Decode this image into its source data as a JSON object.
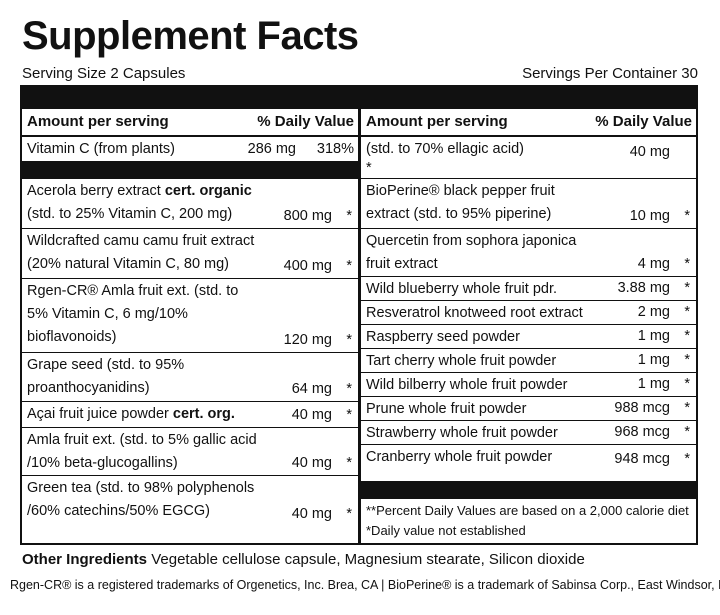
{
  "title": "Supplement Facts",
  "serving_size": "Serving Size 2 Capsules",
  "servings_per_container": "Servings Per Container 30",
  "header": {
    "amount_label": "Amount per serving",
    "dv_label": "% Daily Value"
  },
  "left": {
    "vitamin_c": {
      "name": "Vitamin C (from plants)",
      "amount": "286 mg",
      "dv": "318%"
    },
    "items": [
      {
        "name_plain": "Acerola berry extract ",
        "name_bold": "cert. organic",
        "name_rest": "(std. to 25% Vitamin C, 200 mg)",
        "amount": "800 mg",
        "dv": "*"
      },
      {
        "name_plain": "Wildcrafted camu camu fruit extract (20% natural Vitamin C, 80 mg)",
        "name_bold": "",
        "name_rest": "",
        "amount": "400 mg",
        "dv": "*"
      },
      {
        "name_plain": "Rgen-CR® Amla fruit ext. (std. to 5% Vitamin C, 6 mg/10% bioflavonoids)",
        "name_bold": "",
        "name_rest": "",
        "amount": "120 mg",
        "dv": "*"
      },
      {
        "name_plain": "Grape seed (std. to 95% proanthocyanidins)",
        "name_bold": "",
        "name_rest": "",
        "amount": "64 mg",
        "dv": "*"
      },
      {
        "name_plain": "Açai fruit juice powder ",
        "name_bold": "cert. org.",
        "name_rest": "",
        "amount": "40 mg",
        "dv": "*"
      },
      {
        "name_plain": "Amla fruit ext. (std. to 5% gallic acid /10% beta-glucogallins)",
        "name_bold": "",
        "name_rest": "",
        "amount": "40 mg",
        "dv": "*"
      },
      {
        "name_plain": "Green tea (std. to 98% polyphenols /60% catechins/50% EGCG)",
        "name_bold": "",
        "name_rest": "",
        "amount": "40 mg",
        "dv": "*"
      }
    ]
  },
  "right": {
    "items": [
      {
        "name": "(std. to 70% ellagic acid)",
        "amount": "40 mg",
        "dv": "*"
      },
      {
        "name": "BioPerine® black pepper fruit extract (std. to 95% piperine)",
        "amount": "10 mg",
        "dv": "*"
      },
      {
        "name": "Quercetin from sophora japonica fruit extract",
        "amount": "4 mg",
        "dv": "*"
      },
      {
        "name": "Wild blueberry whole fruit pdr.",
        "amount": "3.88 mg",
        "dv": "*"
      },
      {
        "name": "Resveratrol knotweed root extract",
        "amount": "2 mg",
        "dv": "*"
      },
      {
        "name": "Raspberry seed powder",
        "amount": "1 mg",
        "dv": "*"
      },
      {
        "name": "Tart cherry whole fruit powder",
        "amount": "1 mg",
        "dv": "*"
      },
      {
        "name": "Wild bilberry whole fruit powder",
        "amount": "1 mg",
        "dv": "*"
      },
      {
        "name": "Prune whole fruit powder",
        "amount": "988 mcg",
        "dv": "*"
      },
      {
        "name": "Strawberry whole fruit powder",
        "amount": "968 mcg",
        "dv": "*"
      },
      {
        "name": "Cranberry whole fruit powder",
        "amount": "948 mcg",
        "dv": "*"
      }
    ],
    "notes": [
      "**Percent Daily Values are based on a 2,000 calorie diet",
      "*Daily value not established"
    ]
  },
  "other_ingredients": {
    "label": "Other Ingredients",
    "text": "Vegetable cellulose capsule, Magnesium stearate, Silicon dioxide"
  },
  "trademark": "Rgen-CR® is a registered trademarks of Orgenetics, Inc. Brea, CA | BioPerine® is a trademark of Sabinsa Corp., East Windsor, NJ"
}
